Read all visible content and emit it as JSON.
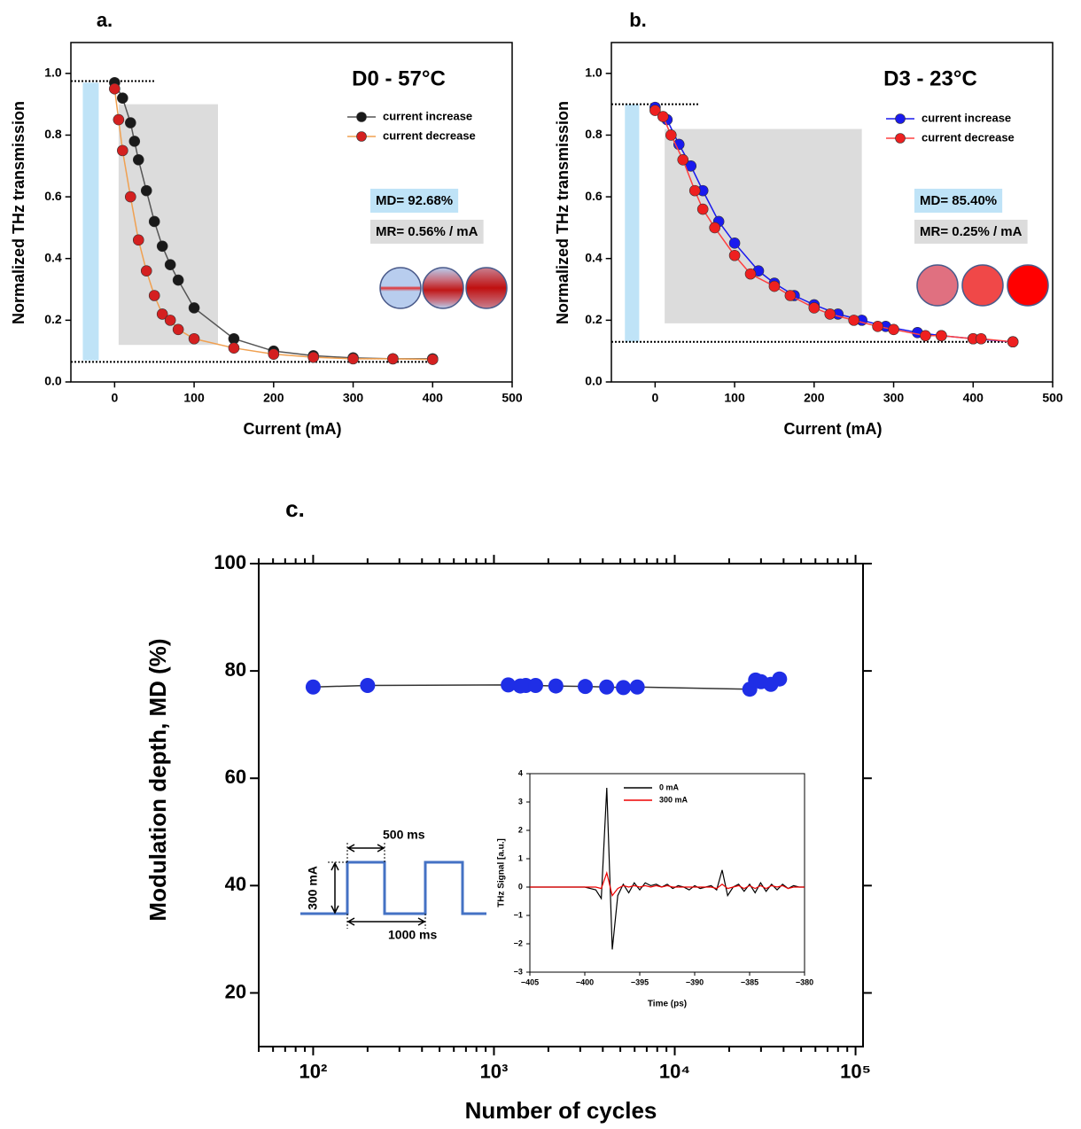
{
  "chart_data": [
    {
      "type": "line",
      "panel_label": "a.",
      "title": "D0 - 57°C",
      "x_label": "Current (mA)",
      "y_label": "Normalized THz transmission",
      "xlim": [
        -55,
        500
      ],
      "ylim": [
        0,
        1.1
      ],
      "xticks": [
        0,
        100,
        200,
        300,
        400,
        500
      ],
      "yticks": [
        {
          "value": 0,
          "label": "0.0"
        },
        0.2,
        0.4,
        0.6,
        0.8,
        {
          "value": 1,
          "label": "1.0"
        }
      ],
      "legend": true,
      "shaded_regions": [
        {
          "x": [
            5,
            130
          ],
          "y": [
            0.12,
            0.9
          ],
          "color": "#dcdcdc"
        },
        {
          "x": [
            -40,
            -20
          ],
          "y": [
            0.07,
            0.97
          ],
          "color": "#bfe3f7"
        }
      ],
      "hlines": [
        {
          "y": 0.975,
          "x": [
            -55,
            50
          ]
        },
        {
          "y": 0.065,
          "x": [
            -55,
            400
          ]
        }
      ],
      "annotations": [
        {
          "text": "MD= 92.68%",
          "background": "#bfe3f7"
        },
        {
          "text": "MR= 0.56% / mA",
          "background": "#dcdcdc"
        }
      ],
      "series": [
        {
          "name": "current increase",
          "color": "#1a1a1a",
          "line_color": "#555555",
          "marker": true,
          "x": [
            0,
            10,
            20,
            25,
            30,
            40,
            50,
            60,
            70,
            80,
            100,
            150,
            200,
            250,
            300,
            350,
            400
          ],
          "values": [
            0.97,
            0.92,
            0.84,
            0.78,
            0.72,
            0.62,
            0.52,
            0.44,
            0.38,
            0.33,
            0.24,
            0.14,
            0.1,
            0.085,
            0.078,
            0.075,
            0.075
          ]
        },
        {
          "name": "current decrease",
          "color": "#d42020",
          "line_color": "#f0a050",
          "marker": true,
          "x": [
            0,
            5,
            10,
            20,
            30,
            40,
            50,
            60,
            70,
            80,
            100,
            150,
            200,
            250,
            300,
            350,
            400
          ],
          "values": [
            0.95,
            0.85,
            0.75,
            0.6,
            0.46,
            0.36,
            0.28,
            0.22,
            0.2,
            0.17,
            0.14,
            0.11,
            0.09,
            0.08,
            0.075,
            0.075,
            0.073
          ]
        }
      ]
    },
    {
      "type": "line",
      "panel_label": "b.",
      "title": "D3 - 23°C",
      "x_label": "Current (mA)",
      "y_label": "Normalized THz transmission",
      "xlim": [
        -55,
        500
      ],
      "ylim": [
        0,
        1.1
      ],
      "xticks": [
        0,
        100,
        200,
        300,
        400,
        500
      ],
      "yticks": [
        {
          "value": 0,
          "label": "0.0"
        },
        0.2,
        0.4,
        0.6,
        0.8,
        {
          "value": 1,
          "label": "1.0"
        }
      ],
      "legend": true,
      "shaded_regions": [
        {
          "x": [
            12,
            260
          ],
          "y": [
            0.19,
            0.82
          ],
          "color": "#dcdcdc"
        },
        {
          "x": [
            -38,
            -20
          ],
          "y": [
            0.13,
            0.9
          ],
          "color": "#bfe3f7"
        }
      ],
      "hlines": [
        {
          "y": 0.9,
          "x": [
            -55,
            55
          ]
        },
        {
          "y": 0.13,
          "x": [
            -55,
            450
          ]
        }
      ],
      "annotations": [
        {
          "text": "MD= 85.40%",
          "background": "#bfe3f7"
        },
        {
          "text": "MR= 0.25% / mA",
          "background": "#dcdcdc"
        }
      ],
      "series": [
        {
          "name": "current increase",
          "color": "#1a1aee",
          "line_color": "#1a1aee",
          "marker": true,
          "x": [
            0,
            15,
            30,
            45,
            60,
            80,
            100,
            130,
            150,
            175,
            200,
            230,
            260,
            290,
            330,
            360,
            400,
            450
          ],
          "values": [
            0.89,
            0.85,
            0.77,
            0.7,
            0.62,
            0.52,
            0.45,
            0.36,
            0.32,
            0.28,
            0.25,
            0.22,
            0.2,
            0.18,
            0.16,
            0.15,
            0.14,
            0.13
          ]
        },
        {
          "name": "current decrease",
          "color": "#ee2020",
          "line_color": "#ff4040",
          "marker": true,
          "x": [
            0,
            10,
            20,
            35,
            50,
            60,
            75,
            100,
            120,
            150,
            170,
            200,
            220,
            250,
            280,
            300,
            340,
            360,
            400,
            410,
            450
          ],
          "values": [
            0.88,
            0.86,
            0.8,
            0.72,
            0.62,
            0.56,
            0.5,
            0.41,
            0.35,
            0.31,
            0.28,
            0.24,
            0.22,
            0.2,
            0.18,
            0.17,
            0.15,
            0.15,
            0.14,
            0.14,
            0.13
          ]
        }
      ]
    },
    {
      "type": "line",
      "panel_label": "c.",
      "x_label": "Number of cycles",
      "y_label": "Modulation depth, MD (%)",
      "xscale": "log",
      "xlim": [
        50,
        110000
      ],
      "ylim": [
        10,
        100
      ],
      "xticks": [
        {
          "value": 100,
          "label": "10²"
        },
        {
          "value": 1000,
          "label": "10³"
        },
        {
          "value": 10000,
          "label": "10⁴"
        },
        {
          "value": 100000,
          "label": "10⁵"
        }
      ],
      "xticks_minor": [
        50,
        60,
        70,
        80,
        90,
        200,
        300,
        400,
        500,
        600,
        700,
        800,
        900,
        2000,
        3000,
        4000,
        5000,
        6000,
        7000,
        8000,
        9000,
        20000,
        30000,
        40000,
        50000,
        60000,
        70000,
        80000,
        90000
      ],
      "yticks": [
        20,
        40,
        60,
        80,
        100
      ],
      "annotations": [
        {
          "text": "500 ms"
        },
        {
          "text": "300 mA"
        },
        {
          "text": "1000 ms"
        }
      ],
      "series": [
        {
          "color": "#1f2ee6",
          "line_color": "#333333",
          "marker": true,
          "x": [
            100,
            200,
            1200,
            1400,
            1500,
            1700,
            2200,
            3200,
            4200,
            5200,
            6200,
            26000,
            28000,
            30000,
            34000,
            38000
          ],
          "values": [
            77,
            77.3,
            77.4,
            77.2,
            77.3,
            77.3,
            77.2,
            77.1,
            77,
            76.9,
            77,
            76.6,
            78.3,
            78,
            77.5,
            78.5
          ]
        }
      ]
    },
    {
      "type": "line",
      "x_label": "Time (ps)",
      "y_label": "THz Signal [a.u.]",
      "legend": true,
      "xlim": [
        -405,
        -380
      ],
      "ylim": [
        -3,
        4
      ],
      "xticks": [
        {
          "value": -405,
          "label": "−405"
        },
        {
          "value": -400,
          "label": "−400"
        },
        {
          "value": -395,
          "label": "−395"
        },
        {
          "value": -390,
          "label": "−390"
        },
        {
          "value": -385,
          "label": "−385"
        },
        {
          "value": -380,
          "label": "−380"
        }
      ],
      "yticks": [
        {
          "value": -3,
          "label": "−3"
        },
        {
          "value": -2,
          "label": "−2"
        },
        {
          "value": -1,
          "label": "−1"
        },
        0,
        1,
        2,
        3,
        4
      ],
      "x": [
        -405,
        -404.5,
        -404,
        -403.5,
        -403,
        -402.5,
        -402,
        -401.5,
        -401,
        -400.5,
        -400,
        -399.5,
        -399,
        -398.5,
        -398,
        -397.5,
        -397,
        -396.5,
        -396,
        -395.5,
        -395,
        -394.5,
        -394,
        -393.5,
        -393,
        -392.5,
        -392,
        -391.5,
        -391,
        -390.5,
        -390,
        -389.5,
        -389,
        -388.5,
        -388,
        -387.5,
        -387,
        -386.5,
        -386,
        -385.5,
        -385,
        -384.5,
        -384,
        -383.5,
        -383,
        -382.5,
        -382,
        -381.5,
        -381,
        -380.5,
        -380
      ],
      "series": [
        {
          "name": "0 mA",
          "color": "#000000",
          "values": [
            0,
            0,
            0,
            0,
            0,
            0,
            0,
            0,
            0,
            0,
            0,
            -0.05,
            -0.1,
            -0.4,
            3.5,
            -2.2,
            -0.3,
            0.1,
            -0.2,
            0.15,
            -0.1,
            0.15,
            0.05,
            0.1,
            0,
            0.1,
            -0.05,
            0.05,
            0,
            -0.1,
            0.05,
            -0.05,
            0,
            0.05,
            -0.1,
            0.6,
            -0.3,
            0,
            0.1,
            -0.15,
            0.1,
            -0.2,
            0.15,
            -0.15,
            0.1,
            -0.1,
            0.1,
            -0.05,
            0.05,
            0,
            0
          ]
        },
        {
          "name": "300 mA",
          "color": "#ee0000",
          "values": [
            0,
            0,
            0,
            0,
            0,
            0,
            0,
            0,
            0,
            0,
            0,
            0,
            0,
            -0.05,
            0.5,
            -0.3,
            -0.05,
            0.05,
            0,
            0.05,
            0,
            0.05,
            0,
            0.05,
            0,
            0.05,
            0,
            0,
            0,
            0,
            0,
            0,
            0,
            0,
            -0.05,
            0.1,
            -0.05,
            0,
            0.05,
            -0.05,
            0.05,
            -0.05,
            0.05,
            -0.05,
            0.05,
            0,
            0.05,
            -0.05,
            0,
            0,
            0
          ]
        }
      ]
    }
  ]
}
